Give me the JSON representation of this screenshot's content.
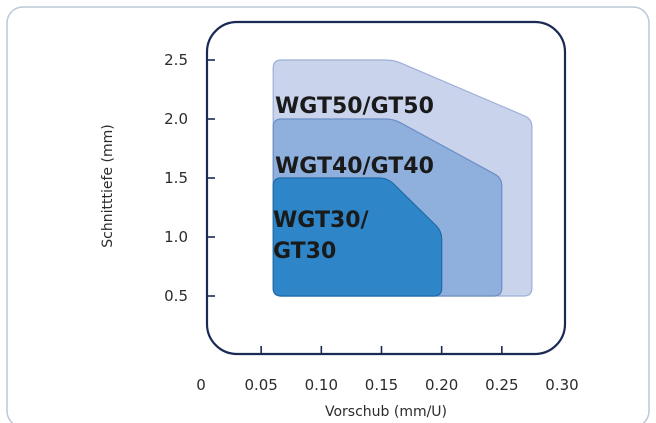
{
  "chart_data": {
    "type": "area",
    "xlabel": "Vorschub (mm/U)",
    "ylabel": "Schnitttiefe  (mm)",
    "x_ticks": [
      "0",
      "0.05",
      "0.10",
      "0.15",
      "0.20",
      "0.25",
      "0.30"
    ],
    "x_tick_values": [
      0,
      0.05,
      0.1,
      0.15,
      0.2,
      0.25,
      0.3
    ],
    "y_ticks": [
      "0.5",
      "1.0",
      "1.5",
      "2.0",
      "2.5"
    ],
    "y_tick_values": [
      0.5,
      1.0,
      1.5,
      2.0,
      2.5
    ],
    "xlim": [
      0,
      0.3
    ],
    "ylim": [
      0,
      2.5
    ],
    "grid": false,
    "regions": [
      {
        "label_lines": [
          "WGT50/GT50"
        ],
        "color": "#c9d3ec",
        "edge": "#9fb0d6",
        "points": [
          [
            0.06,
            0.5
          ],
          [
            0.06,
            2.5
          ],
          [
            0.16,
            2.5
          ],
          [
            0.275,
            2.0
          ],
          [
            0.275,
            0.5
          ]
        ]
      },
      {
        "label_lines": [
          "WGT40/GT40"
        ],
        "color": "#8fb0dc",
        "edge": "#6d8ec4",
        "points": [
          [
            0.06,
            0.5
          ],
          [
            0.06,
            2.0
          ],
          [
            0.16,
            2.0
          ],
          [
            0.25,
            1.5
          ],
          [
            0.25,
            0.5
          ]
        ]
      },
      {
        "label_lines": [
          "WGT30/",
          "GT30"
        ],
        "color": "#2e86c8",
        "edge": "#1f6ba6",
        "points": [
          [
            0.06,
            0.5
          ],
          [
            0.06,
            1.5
          ],
          [
            0.155,
            1.5
          ],
          [
            0.2,
            1.05
          ],
          [
            0.2,
            0.5
          ]
        ]
      }
    ],
    "colors": {
      "frame": "#1b2a55",
      "border": "#bcc8d6"
    }
  }
}
